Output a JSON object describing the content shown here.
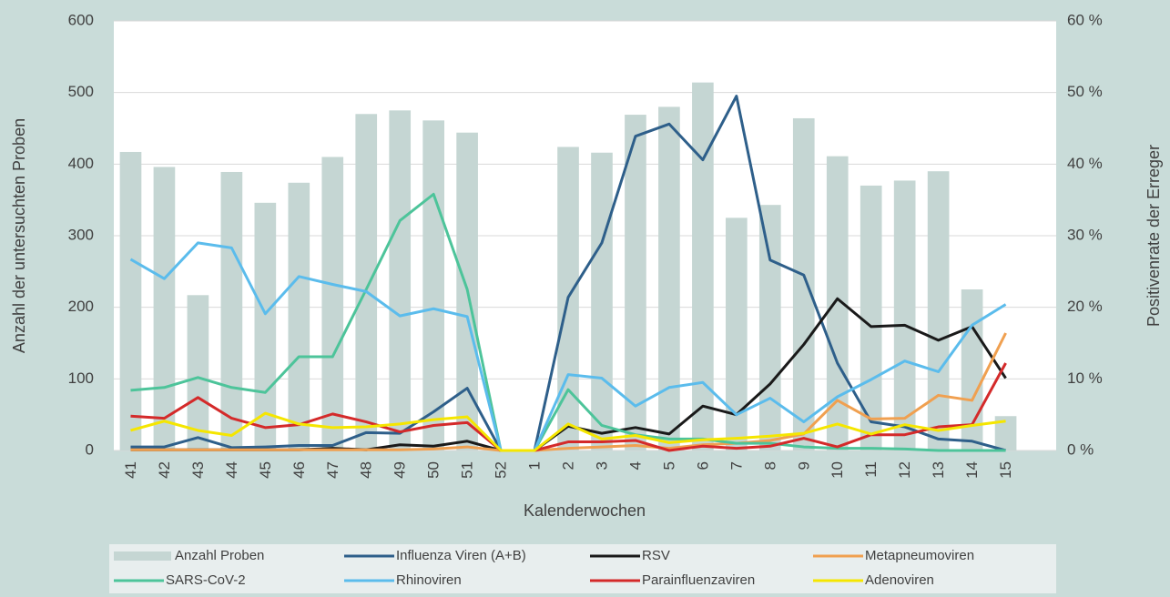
{
  "chart_data": {
    "type": "combo",
    "x_label": "Kalenderwochen",
    "y_label": "Anzahl der untersuchten Proben",
    "y2_label": "Positivenrate der Erreger",
    "categories": [
      "41",
      "42",
      "43",
      "44",
      "45",
      "46",
      "47",
      "48",
      "49",
      "50",
      "51",
      "52",
      "1",
      "2",
      "3",
      "4",
      "5",
      "6",
      "7",
      "8",
      "9",
      "10",
      "11",
      "12",
      "13",
      "14",
      "15",
      null
    ],
    "ylim": [
      0,
      600
    ],
    "yticks": [
      0,
      100,
      200,
      300,
      400,
      500,
      600
    ],
    "y2lim": [
      0,
      60
    ],
    "y2ticks": [
      {
        "value": 0,
        "label": "0 %"
      },
      {
        "value": 10,
        "label": "10 %"
      },
      {
        "value": 20,
        "label": "20 %"
      },
      {
        "value": 30,
        "label": "30 %"
      },
      {
        "value": 40,
        "label": "40 %"
      },
      {
        "value": 50,
        "label": "50 %"
      },
      {
        "value": 60,
        "label": "60 %"
      }
    ],
    "grid": true,
    "series": [
      {
        "name": "Anzahl Proben",
        "type": "bar",
        "color": "#c5d6d3",
        "values": [
          417,
          396,
          217,
          389,
          346,
          374,
          410,
          470,
          475,
          461,
          444,
          0,
          0,
          424,
          416,
          469,
          480,
          514,
          325,
          343,
          464,
          411,
          370,
          377,
          390,
          225,
          48,
          null
        ]
      },
      {
        "name": "Influenza Viren (A+B)",
        "type": "line",
        "axis": "y2",
        "color": "#2e5f8a",
        "values": [
          0.5,
          0.5,
          1.8,
          0.4,
          0.5,
          0.7,
          0.7,
          2.5,
          2.4,
          5.4,
          8.7,
          0,
          0,
          21.4,
          29,
          43.9,
          45.6,
          40.6,
          49.5,
          26.6,
          24.5,
          12.2,
          4,
          3.3,
          1.6,
          1.3,
          0,
          null
        ]
      },
      {
        "name": "RSV",
        "type": "line",
        "axis": "y2",
        "color": "#1a1a1a",
        "values": [
          0.1,
          0.1,
          0.1,
          0.1,
          0.1,
          0.1,
          0.3,
          0.1,
          0.8,
          0.6,
          1.3,
          0,
          0,
          3.4,
          2.4,
          3.2,
          2.3,
          6.2,
          5,
          9.3,
          14.8,
          21.2,
          17.3,
          17.5,
          15.4,
          17.3,
          10.1,
          null
        ]
      },
      {
        "name": "Metapneumoviren",
        "type": "line",
        "axis": "y2",
        "color": "#f0a050",
        "values": [
          0.1,
          0.1,
          0.1,
          0.1,
          0.1,
          0.1,
          0.1,
          0.1,
          0.1,
          0.2,
          0.5,
          0,
          0,
          0.3,
          0.5,
          0.7,
          0.3,
          0.8,
          1,
          1.4,
          2.3,
          7,
          4.4,
          4.5,
          7.7,
          7,
          16.4,
          null
        ]
      },
      {
        "name": "SARS-CoV-2",
        "type": "line",
        "axis": "y2",
        "color": "#4dc49a",
        "values": [
          8.4,
          8.8,
          10.2,
          8.8,
          8.1,
          13.1,
          13.1,
          22.5,
          32.1,
          35.8,
          22.5,
          0,
          0,
          8.5,
          3.5,
          2.2,
          1.6,
          1.6,
          1,
          1,
          0.5,
          0.3,
          0.3,
          0.2,
          0,
          0,
          0,
          null
        ]
      },
      {
        "name": "Rhinoviren",
        "type": "line",
        "axis": "y2",
        "color": "#5bbcec",
        "values": [
          26.7,
          24,
          29,
          28.3,
          19.1,
          24.3,
          23.2,
          22.2,
          18.8,
          19.8,
          18.7,
          0,
          0,
          10.6,
          10.1,
          6.2,
          8.8,
          9.5,
          5,
          7.3,
          4,
          7.5,
          9.9,
          12.5,
          11,
          17.5,
          20.4,
          null
        ]
      },
      {
        "name": "Parainfluenzaviren",
        "type": "line",
        "axis": "y2",
        "color": "#d42a2a",
        "values": [
          4.8,
          4.5,
          7.4,
          4.5,
          3.2,
          3.6,
          5.1,
          4,
          2.6,
          3.5,
          3.9,
          0,
          0,
          1.2,
          1.2,
          1.4,
          0,
          0.6,
          0.3,
          0.6,
          1.7,
          0.5,
          2.2,
          2.2,
          3.3,
          3.6,
          12.2,
          null
        ]
      },
      {
        "name": "Adenoviren",
        "type": "line",
        "axis": "y2",
        "color": "#f5e600",
        "values": [
          2.8,
          4.1,
          2.8,
          2.1,
          5.2,
          3.7,
          3.2,
          3.3,
          3.7,
          4.3,
          4.7,
          0,
          0,
          3.7,
          1.6,
          2.1,
          1.1,
          1.5,
          1.7,
          2,
          2.4,
          3.7,
          2.3,
          3.6,
          2.8,
          3.5,
          4.1,
          null
        ]
      }
    ]
  }
}
